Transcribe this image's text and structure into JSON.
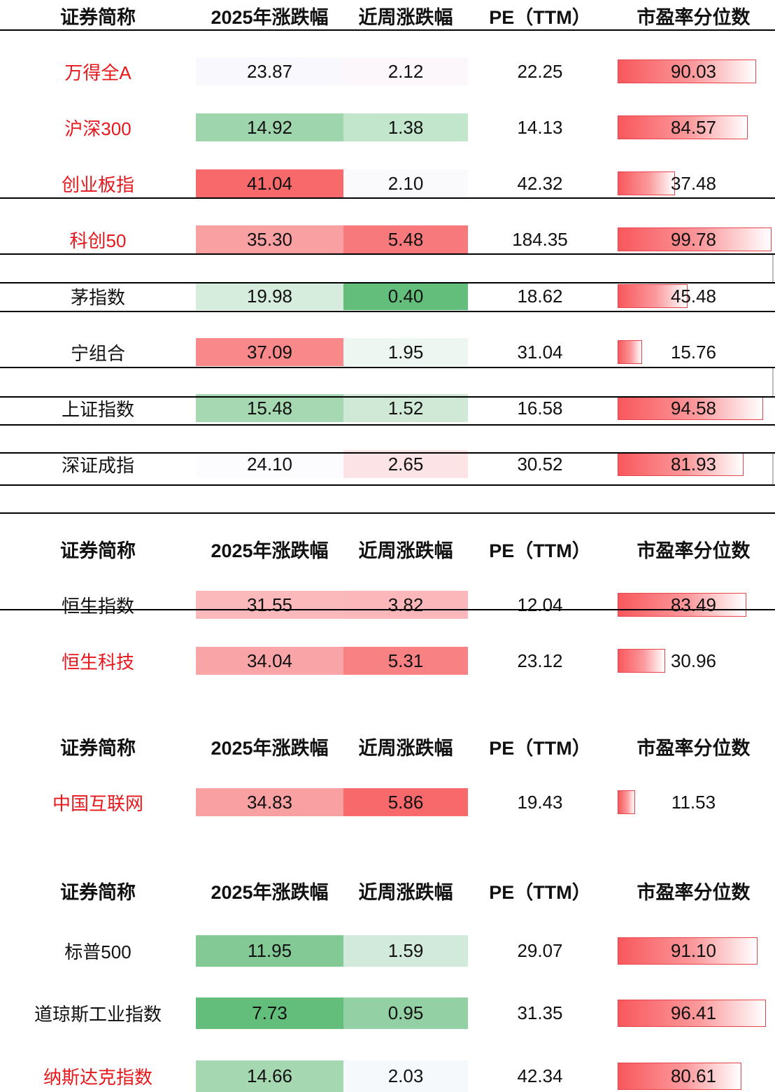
{
  "headers": [
    "证券简称",
    "2025年涨跌幅",
    "近周涨跌幅",
    "PE（TTM）",
    "市盈率分位数"
  ],
  "groups": [
    {
      "rows": [
        {
          "name": "万得全A",
          "red": true,
          "ytd": "23.87",
          "week": "2.12",
          "pe": "22.25",
          "pct": "90.03",
          "ytd_bg": "#f9f9fd",
          "week_bg": "#fbf7fa"
        },
        {
          "name": "沪深300",
          "red": true,
          "ytd": "14.92",
          "week": "1.38",
          "pe": "14.13",
          "pct": "84.57",
          "ytd_bg": "#9fd5ac",
          "week_bg": "#c2e6cc"
        },
        {
          "name": "创业板指",
          "red": true,
          "ytd": "41.04",
          "week": "2.10",
          "pe": "42.32",
          "pct": "37.48",
          "ytd_bg": "#f8696b",
          "week_bg": "#fafafd"
        },
        {
          "name": "科创50",
          "red": true,
          "ytd": "35.30",
          "week": "5.48",
          "pe": "184.35",
          "pct": "99.78",
          "ytd_bg": "#f9a0a2",
          "week_bg": "#f8797b"
        },
        {
          "name": "茅指数",
          "red": false,
          "ytd": "19.98",
          "week": "0.40",
          "pe": "18.62",
          "pct": "45.48",
          "ytd_bg": "#d6ecdc",
          "week_bg": "#63be7b"
        },
        {
          "name": "宁组合",
          "red": false,
          "ytd": "37.09",
          "week": "1.95",
          "pe": "31.04",
          "pct": "15.76",
          "ytd_bg": "#f8888a",
          "week_bg": "#eef6f1"
        },
        {
          "name": "上证指数",
          "red": false,
          "ytd": "15.48",
          "week": "1.52",
          "pe": "16.58",
          "pct": "94.58",
          "ytd_bg": "#a6d8b2",
          "week_bg": "#cfe9d6"
        },
        {
          "name": "深证成指",
          "red": false,
          "ytd": "24.10",
          "week": "2.65",
          "pe": "30.52",
          "pct": "81.93",
          "ytd_bg": "#fcfcff",
          "week_bg": "#fce3e6"
        }
      ]
    },
    {
      "rows": [
        {
          "name": "恒生指数",
          "red": false,
          "ytd": "31.55",
          "week": "3.82",
          "pe": "12.04",
          "pct": "83.49",
          "ytd_bg": "#fbb9bb",
          "week_bg": "#fbb7b9"
        },
        {
          "name": "恒生科技",
          "red": true,
          "ytd": "34.04",
          "week": "5.31",
          "pe": "23.12",
          "pct": "30.96",
          "ytd_bg": "#f9a4a6",
          "week_bg": "#f88183"
        }
      ]
    },
    {
      "rows": [
        {
          "name": "中国互联网",
          "red": true,
          "ytd": "34.83",
          "week": "5.86",
          "pe": "19.43",
          "pct": "11.53",
          "ytd_bg": "#f9a0a2",
          "week_bg": "#f8696b"
        }
      ]
    },
    {
      "rows": [
        {
          "name": "标普500",
          "red": false,
          "ytd": "11.95",
          "week": "1.59",
          "pe": "29.07",
          "pct": "91.10",
          "ytd_bg": "#83c995",
          "week_bg": "#d2eadb"
        },
        {
          "name": "道琼斯工业指数",
          "red": false,
          "ytd": "7.73",
          "week": "0.95",
          "pe": "31.35",
          "pct": "96.41",
          "ytd_bg": "#63be7b",
          "week_bg": "#93d0a4"
        },
        {
          "name": "纳斯达克指数",
          "red": true,
          "ytd": "14.66",
          "week": "2.03",
          "pe": "42.34",
          "pct": "80.61",
          "ytd_bg": "#a5d7b1",
          "week_bg": "#f6f9fb"
        }
      ]
    }
  ]
}
